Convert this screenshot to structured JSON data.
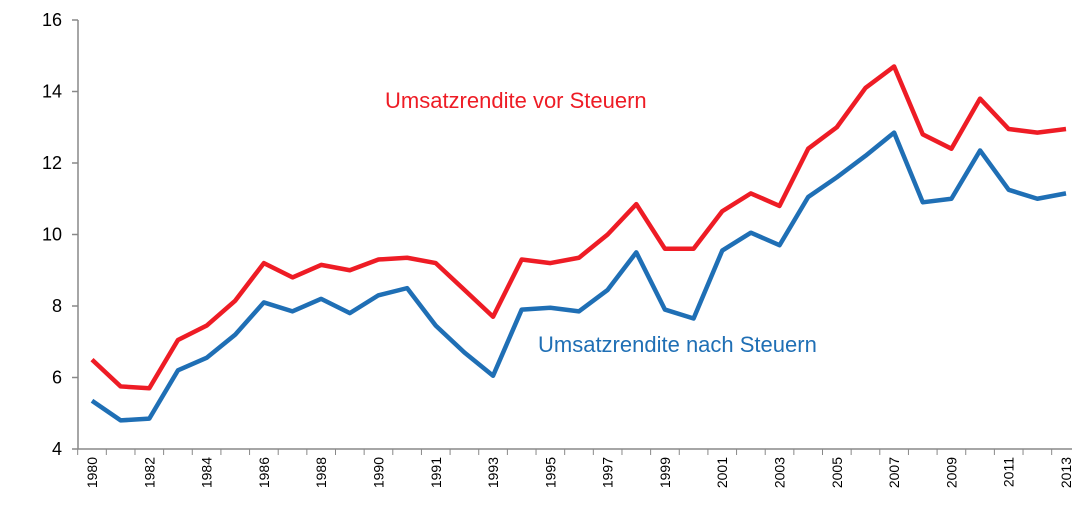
{
  "chart_data": {
    "type": "line",
    "categories": [
      "1980",
      null,
      "1982",
      null,
      "1984",
      null,
      "1986",
      null,
      "1988",
      null,
      "1990",
      null,
      "1991",
      null,
      "1993",
      null,
      "1995",
      null,
      "1997",
      null,
      "1999",
      null,
      "2001",
      null,
      "2003",
      null,
      "2005",
      null,
      "2007",
      null,
      "2009",
      null,
      "2011",
      null,
      "2013"
    ],
    "series": [
      {
        "name": "Umsatzrendite vor Steuern",
        "color": "#ee1c25",
        "values": [
          6.5,
          5.75,
          5.7,
          7.05,
          7.45,
          8.15,
          9.2,
          8.8,
          9.15,
          9.0,
          9.3,
          9.35,
          9.2,
          8.45,
          7.7,
          9.3,
          9.2,
          9.35,
          10.0,
          10.85,
          9.6,
          9.6,
          10.65,
          11.15,
          10.8,
          12.4,
          13.0,
          14.1,
          14.7,
          12.8,
          12.4,
          13.8,
          12.95,
          12.85,
          12.95
        ]
      },
      {
        "name": "Umsatzrendite nach Steuern",
        "color": "#1f6fb5",
        "values": [
          5.35,
          4.8,
          4.85,
          6.2,
          6.55,
          7.2,
          8.1,
          7.85,
          8.2,
          7.8,
          8.3,
          8.5,
          7.45,
          6.7,
          6.05,
          7.9,
          7.95,
          7.85,
          8.45,
          9.5,
          7.9,
          7.65,
          9.55,
          10.05,
          9.7,
          11.05,
          11.6,
          12.2,
          12.85,
          10.9,
          11.0,
          12.35,
          11.25,
          11.0,
          11.15
        ]
      }
    ],
    "ylim": [
      4,
      16
    ],
    "yticks": [
      4,
      6,
      8,
      10,
      12,
      14,
      16
    ]
  }
}
